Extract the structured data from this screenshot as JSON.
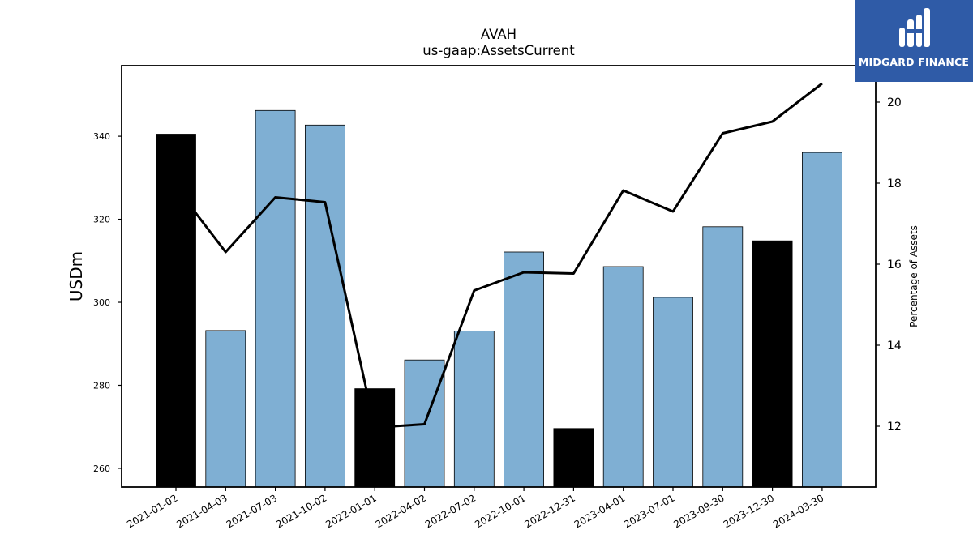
{
  "chart_data": {
    "type": "bar",
    "title": "AVAH",
    "subtitle": "us-gaap:AssetsCurrent",
    "ylabel": "USDm",
    "y2label": "Percentage of Assets",
    "categories": [
      "2021-01-02",
      "2021-04-03",
      "2021-07-03",
      "2021-10-02",
      "2022-01-01",
      "2022-04-02",
      "2022-07-02",
      "2022-10-01",
      "2022-12-31",
      "2023-04-01",
      "2023-07-01",
      "2023-09-30",
      "2023-12-30",
      "2024-03-30"
    ],
    "series": [
      {
        "type": "bar",
        "values": [
          340.5,
          293.2,
          346.2,
          342.7,
          279.2,
          286.1,
          293.1,
          312.1,
          269.6,
          308.6,
          301.2,
          318.2,
          314.8,
          336.1
        ],
        "highlight": [
          true,
          false,
          false,
          false,
          true,
          false,
          false,
          false,
          true,
          false,
          false,
          false,
          true,
          false
        ],
        "color": "#7fafd3",
        "highlight_color": "#000000"
      },
      {
        "type": "line",
        "axis": "right",
        "values": [
          17.9,
          16.3,
          17.65,
          17.53,
          11.97,
          12.05,
          15.35,
          15.8,
          15.77,
          17.82,
          17.3,
          19.23,
          19.52,
          20.46
        ],
        "color": "#000000"
      }
    ],
    "ylim": [
      255.5,
      357
    ],
    "y_ticks": [
      260,
      280,
      300,
      320,
      340
    ],
    "y2lim": [
      10.5,
      20.9
    ],
    "y2_ticks": [
      12,
      14,
      16,
      18,
      20
    ],
    "grid": false
  },
  "logo": {
    "text": "MIDGARD FINANCE"
  }
}
